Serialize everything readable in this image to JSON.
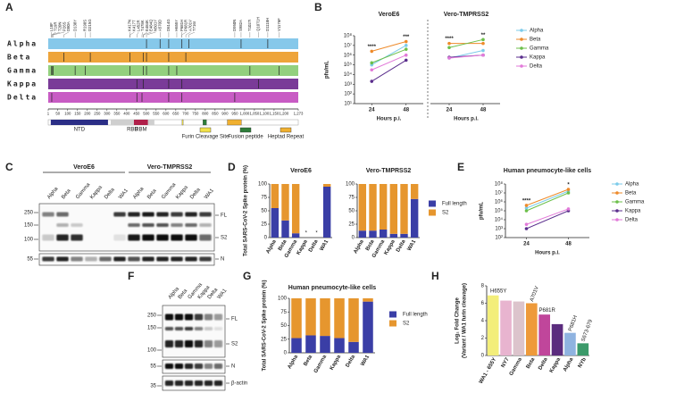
{
  "panel_letters": [
    "A",
    "B",
    "C",
    "D",
    "E",
    "F",
    "G",
    "H"
  ],
  "panel_a": {
    "xlim": [
      1,
      1273
    ],
    "xticks": [
      1,
      50,
      100,
      150,
      200,
      250,
      300,
      350,
      400,
      450,
      500,
      550,
      600,
      650,
      700,
      750,
      800,
      850,
      900,
      950,
      {
        "value": 1000,
        "label": "1,000"
      },
      {
        "value": 1050,
        "label": "1,050"
      },
      {
        "value": 1100,
        "label": "1,100"
      },
      {
        "value": 1150,
        "label": "1,150"
      },
      {
        "value": 1200,
        "label": "1,200"
      },
      {
        "value": 1273,
        "label": "1,273"
      }
    ],
    "variants": [
      {
        "name": "Alpha",
        "color": "#86c8ea",
        "positions": [
          501,
          570,
          614,
          681,
          716,
          982,
          1118
        ]
      },
      {
        "name": "Beta",
        "color": "#eea43a",
        "positions": [
          80,
          215,
          417,
          484,
          501,
          614,
          701
        ]
      },
      {
        "name": "Gamma",
        "color": "#93d07e",
        "positions": [
          18,
          20,
          26,
          138,
          190,
          417,
          484,
          501,
          614,
          655,
          1027,
          1176
        ]
      },
      {
        "name": "Kappa",
        "color": "#7a3b98",
        "positions": [
          452,
          484,
          614,
          681,
          1071
        ]
      },
      {
        "name": "Delta",
        "color": "#c85cc4",
        "positions": [
          19,
          452,
          478,
          614,
          681,
          950
        ]
      }
    ],
    "mutations": [
      {
        "label": "L18F",
        "pos": 18
      },
      {
        "label": "T19R",
        "pos": 19
      },
      {
        "label": "T20N",
        "pos": 20
      },
      {
        "label": "P26S",
        "pos": 26
      },
      {
        "label": "D80A",
        "pos": 80
      },
      {
        "label": "D138Y",
        "pos": 138
      },
      {
        "label": "R190S",
        "pos": 190
      },
      {
        "label": "D215G",
        "pos": 215
      },
      {
        "label": "K417N",
        "pos": 417
      },
      {
        "label": "K417T",
        "pos": 417
      },
      {
        "label": "L452R",
        "pos": 452
      },
      {
        "label": "T478K",
        "pos": 478
      },
      {
        "label": "E484K",
        "pos": 484
      },
      {
        "label": "E484Q",
        "pos": 484
      },
      {
        "label": "N501Y",
        "pos": 501
      },
      {
        "label": "A570D",
        "pos": 570
      },
      {
        "label": "D614G",
        "pos": 614
      },
      {
        "label": "H655Y",
        "pos": 655
      },
      {
        "label": "P681H",
        "pos": 681
      },
      {
        "label": "P681R",
        "pos": 681
      },
      {
        "label": "A701V",
        "pos": 701
      },
      {
        "label": "T716I",
        "pos": 716
      },
      {
        "label": "D950N",
        "pos": 950
      },
      {
        "label": "S982A",
        "pos": 982
      },
      {
        "label": "T1027I",
        "pos": 1027
      },
      {
        "label": "Q1071H",
        "pos": 1071
      },
      {
        "label": "D1118H",
        "pos": 1118
      },
      {
        "label": "V1176F",
        "pos": 1176
      }
    ],
    "domains": [
      {
        "name": "NTD",
        "start": 14,
        "end": 305,
        "color": "#2b2e86"
      },
      {
        "name": "RBD",
        "start": 319,
        "end": 541,
        "color": "#cfcfcf"
      },
      {
        "name": "RBM",
        "start": 437,
        "end": 508,
        "color": "#b0204a"
      }
    ],
    "features": [
      {
        "name": "Furin Cleavage Site",
        "start": 682,
        "end": 685,
        "color": "#f2e24a"
      },
      {
        "name": "Fusion peptide",
        "start": 788,
        "end": 806,
        "color": "#2e7d3a"
      },
      {
        "name": "Heptad Repeat",
        "start": 912,
        "end": 984,
        "color": "#f0b030"
      }
    ]
  },
  "blot_c": {
    "headers": [
      "VeroE6",
      "Vero-TMPRSS2"
    ],
    "lanes": [
      "Alpha",
      "Beta",
      "Gamma",
      "Kappa",
      "Delta",
      "WA1",
      "Alpha",
      "Beta",
      "Gamma",
      "Kappa",
      "Delta",
      "WA1"
    ],
    "markers": [
      250,
      150,
      100,
      55
    ],
    "bands": [
      "FL",
      "S2",
      "N"
    ]
  },
  "blot_f": {
    "lanes": [
      "Alpha",
      "Beta",
      "Gamma",
      "Kappa",
      "Delta",
      "WA1"
    ],
    "markers": [
      250,
      150,
      100,
      55,
      35
    ],
    "bands": [
      "FL",
      "S2",
      "N",
      "β-actin"
    ]
  },
  "chart_data": [
    {
      "type": "line",
      "title": "VeroE6",
      "xlabel": "Hours p.i.",
      "ylabel": "pfu/mL",
      "log_scale": true,
      "categories": [
        "24",
        "48"
      ],
      "ylim": [
        10,
        100000000
      ],
      "yticks": [
        {
          "value": 10,
          "label": "10¹"
        },
        {
          "value": 100,
          "label": "10²"
        },
        {
          "value": 1000,
          "label": "10³"
        },
        {
          "value": 10000,
          "label": "10⁴"
        },
        {
          "value": 100000,
          "label": "10⁵"
        },
        {
          "value": 1000000,
          "label": "10⁶"
        },
        {
          "value": 10000000,
          "label": "10⁷"
        },
        {
          "value": 100000000,
          "label": "10⁸"
        }
      ],
      "significance": [
        "****",
        "***"
      ],
      "series": [
        {
          "name": "Alpha",
          "color": "#7ccbea",
          "values": [
            100000,
            10000000
          ]
        },
        {
          "name": "Beta",
          "color": "#ee8a2a",
          "values": [
            2500000,
            25000000
          ]
        },
        {
          "name": "Gamma",
          "color": "#6cbf4a",
          "values": [
            160000,
            4000000
          ]
        },
        {
          "name": "Kappa",
          "color": "#5a2d8c",
          "values": [
            2000,
            300000
          ]
        },
        {
          "name": "Delta",
          "color": "#e27ad9",
          "values": [
            30000,
            1000000
          ]
        }
      ]
    },
    {
      "type": "line",
      "title": "Vero-TMPRSS2",
      "xlabel": "Hours p.i.",
      "log_scale": true,
      "legend": true,
      "categories": [
        "24",
        "48"
      ],
      "ylim": [
        10,
        100000000
      ],
      "significance": [
        "****",
        "**"
      ],
      "series": [
        {
          "name": "Alpha",
          "color": "#7ccbea",
          "values": [
            500000,
            3000000
          ]
        },
        {
          "name": "Beta",
          "color": "#ee8a2a",
          "values": [
            16000000,
            16000000
          ]
        },
        {
          "name": "Gamma",
          "color": "#6cbf4a",
          "values": [
            6000000,
            40000000
          ]
        },
        {
          "name": "Kappa",
          "color": "#5a2d8c",
          "values": [
            600000,
            1000000
          ]
        },
        {
          "name": "Delta",
          "color": "#e27ad9",
          "values": [
            500000,
            1000000
          ]
        }
      ]
    },
    {
      "type": "stacked_bar",
      "title": "VeroE6",
      "ylabel": "Total SARS-CoV-2 Spike protein (%)",
      "categories": [
        "Alpha",
        "Beta",
        "Gamma",
        "Kappa",
        "Delta",
        "WA1"
      ],
      "ylim": [
        0,
        100
      ],
      "yticks": [
        0,
        25,
        50,
        75,
        100
      ],
      "bar_labels": [
        null,
        null,
        null,
        "*",
        "*",
        null
      ],
      "series": [
        {
          "name": "Full length",
          "color": "#3a3ea6",
          "values": [
            55,
            32,
            8,
            null,
            null,
            95
          ]
        },
        {
          "name": "S2",
          "color": "#e6962e",
          "values": [
            45,
            68,
            92,
            null,
            null,
            5
          ]
        }
      ]
    },
    {
      "type": "stacked_bar",
      "title": "Vero-TMPRSS2",
      "legend": true,
      "categories": [
        "Alpha",
        "Beta",
        "Gamma",
        "Kappa",
        "Delta",
        "WA1"
      ],
      "ylim": [
        0,
        100
      ],
      "yticks": [
        0,
        25,
        50,
        75,
        100
      ],
      "series": [
        {
          "name": "Full length",
          "color": "#3a3ea6",
          "values": [
            13,
            13,
            15,
            7,
            7,
            72
          ]
        },
        {
          "name": "S2",
          "color": "#e6962e",
          "values": [
            87,
            87,
            85,
            93,
            93,
            28
          ]
        }
      ]
    },
    {
      "type": "line",
      "title": "Human pneumocyte-like cells",
      "xlabel": "Hours p.i.",
      "ylabel": "pfu/mL",
      "log_scale": true,
      "legend": true,
      "categories": [
        "24",
        "48"
      ],
      "ylim": [
        100,
        100000000
      ],
      "yticks": [
        {
          "value": 100,
          "label": "10²"
        },
        {
          "value": 1000,
          "label": "10³"
        },
        {
          "value": 10000,
          "label": "10⁴"
        },
        {
          "value": 100000,
          "label": "10⁵"
        },
        {
          "value": 1000000,
          "label": "10⁶"
        },
        {
          "value": 10000000,
          "label": "10⁷"
        },
        {
          "value": 100000000,
          "label": "10⁸"
        }
      ],
      "significance": [
        "****",
        "*"
      ],
      "series": [
        {
          "name": "Alpha",
          "color": "#7ccbea",
          "values": [
            200000,
            16000000
          ]
        },
        {
          "name": "Beta",
          "color": "#ee8a2a",
          "values": [
            400000,
            25000000
          ]
        },
        {
          "name": "Gamma",
          "color": "#6cbf4a",
          "values": [
            100000,
            10000000
          ]
        },
        {
          "name": "Kappa",
          "color": "#5a2d8c",
          "values": [
            1000,
            100000
          ]
        },
        {
          "name": "Delta",
          "color": "#e27ad9",
          "values": [
            3000,
            160000
          ]
        }
      ]
    },
    {
      "type": "stacked_bar",
      "title": "Human pneumocyte-like cells",
      "ylabel": "Total SARS-CoV-2 Spike protein (%)",
      "legend": true,
      "categories": [
        "Alpha",
        "Beta",
        "Gamma",
        "Kappa",
        "Delta",
        "WA1"
      ],
      "ylim": [
        0,
        100
      ],
      "yticks": [
        0,
        25,
        50,
        75,
        100
      ],
      "series": [
        {
          "name": "Full length",
          "color": "#3a3ea6",
          "values": [
            27,
            32,
            31,
            27,
            20,
            94
          ]
        },
        {
          "name": "S2",
          "color": "#e6962e",
          "values": [
            73,
            68,
            69,
            73,
            80,
            6
          ]
        }
      ]
    },
    {
      "type": "bar",
      "ylabel": [
        "Log₂ Fold Change",
        "(Variant / WA1 furin cleavage)"
      ],
      "categories": [
        "WA1 - 655Y",
        "NY7",
        "Gamma",
        "Beta",
        "Delta",
        "Kappa",
        "Alpha",
        "NYb"
      ],
      "values": [
        6.9,
        6.3,
        6.2,
        6.0,
        4.7,
        3.6,
        2.6,
        1.4
      ],
      "colors": [
        "#f3ee7a",
        "#e8b4cf",
        "#dcc4cc",
        "#ee9a3a",
        "#c0469b",
        "#5b2c7e",
        "#8fb3e0",
        "#3c9a6a"
      ],
      "bar_labels": [
        "H655Y",
        null,
        null,
        "A701V",
        "P681R",
        null,
        "P681H",
        "S673-679"
      ],
      "ylim": [
        0,
        8
      ],
      "yticks": [
        0,
        2,
        4,
        6,
        8
      ]
    }
  ]
}
